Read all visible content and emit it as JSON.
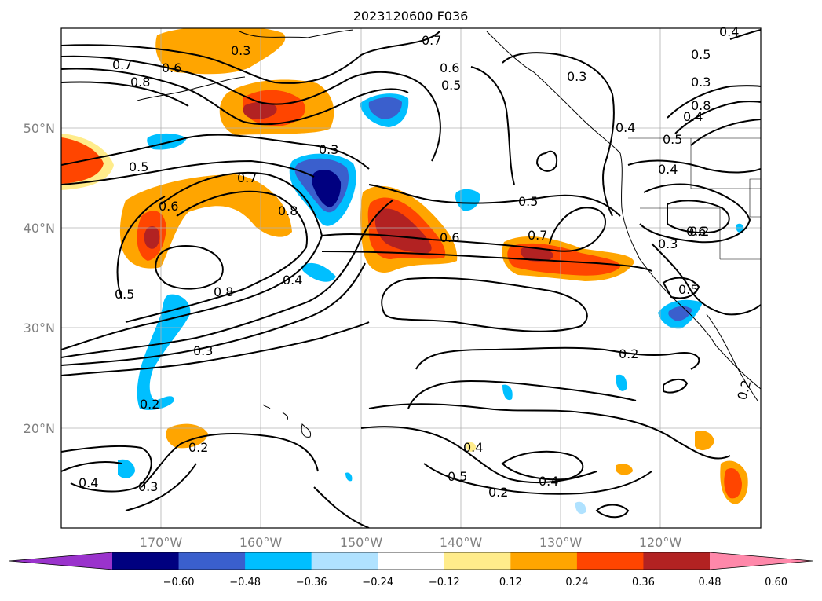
{
  "title": "2023120600 F036",
  "axes": {
    "lat_labels": [
      "50°N",
      "40°N",
      "30°N",
      "20°N"
    ],
    "lon_labels": [
      "170°W",
      "160°W",
      "150°W",
      "140°W",
      "130°W",
      "120°W"
    ]
  },
  "colorbar": {
    "levels": [
      "−0.60",
      "−0.48",
      "−0.36",
      "−0.24",
      "−0.12",
      "0.12",
      "0.24",
      "0.36",
      "0.48",
      "0.60"
    ],
    "colors": [
      "#9a33cc",
      "#000080",
      "#3a5fcd",
      "#00bfff",
      "#b0e2ff",
      "#ffffff",
      "#ffec8b",
      "#ffa500",
      "#ff4500",
      "#b22222",
      "#ff88aa"
    ]
  },
  "contour_labels": [
    "0.3",
    "0.7",
    "0.6",
    "0.5",
    "0.3",
    "0.4",
    "0.4",
    "0.7",
    "0.8",
    "0.6",
    "0.5",
    "0.7",
    "0.6",
    "0.3",
    "0.4",
    "0.4",
    "0.5",
    "0.6",
    "0.8",
    "0.6",
    "0.5",
    "0.7",
    "0.8",
    "0.4",
    "0.5",
    "0.3",
    "0.2",
    "0.5",
    "0.3",
    "0.2",
    "0.2",
    "0.4",
    "0.3",
    "0.2",
    "0.4",
    "0.5",
    "0.2",
    "0.4",
    "0.2",
    "0.5",
    "0.3",
    "0.8"
  ]
}
